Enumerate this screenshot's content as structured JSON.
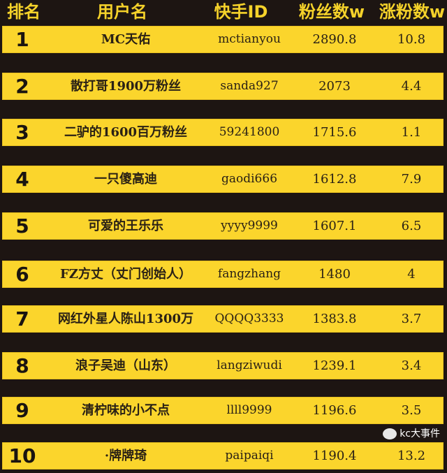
{
  "headers": {
    "rank": "排名",
    "name": "用户名",
    "id": "快手ID",
    "fans": "粉丝数w",
    "growth": "涨粉数w"
  },
  "rows": [
    {
      "rank": "1",
      "name": "MC天佑",
      "id": "mctianyou",
      "fans": "2890.8",
      "growth": "10.8"
    },
    {
      "rank": "2",
      "name": "散打哥1900万粉丝",
      "id": "sanda927",
      "fans": "2073",
      "growth": "4.4"
    },
    {
      "rank": "3",
      "name": "二驴的1600百万粉丝",
      "id": "59241800",
      "fans": "1715.6",
      "growth": "1.1"
    },
    {
      "rank": "4",
      "name": "一只傻高迪",
      "id": "gaodi666",
      "fans": "1612.8",
      "growth": "7.9"
    },
    {
      "rank": "5",
      "name": "可爱的王乐乐",
      "id": "yyyy9999",
      "fans": "1607.1",
      "growth": "6.5"
    },
    {
      "rank": "6",
      "name": "FZ方丈（丈门创始人）",
      "id": "fangzhang",
      "fans": "1480",
      "growth": "4"
    },
    {
      "rank": "7",
      "name": "网红外星人陈山1300万",
      "id": "QQQQ3333",
      "fans": "1383.8",
      "growth": "3.7"
    },
    {
      "rank": "8",
      "name": "浪子吴迪（山东）",
      "id": "langziwudi",
      "fans": "1239.1",
      "growth": "3.4"
    },
    {
      "rank": "9",
      "name": "清柠味的小不点",
      "id": "llll9999",
      "fans": "1196.6",
      "growth": "3.5"
    },
    {
      "rank": "10",
      "name": "·牌牌琦",
      "id": "paipaiqi",
      "fans": "1190.4",
      "growth": "13.2"
    }
  ],
  "watermark": {
    "text": "kc大事件",
    "icon": "wechat-icon"
  },
  "colors": {
    "background": "#1d1512",
    "row": "#fbd52c",
    "header_text": "#f5d22a"
  }
}
